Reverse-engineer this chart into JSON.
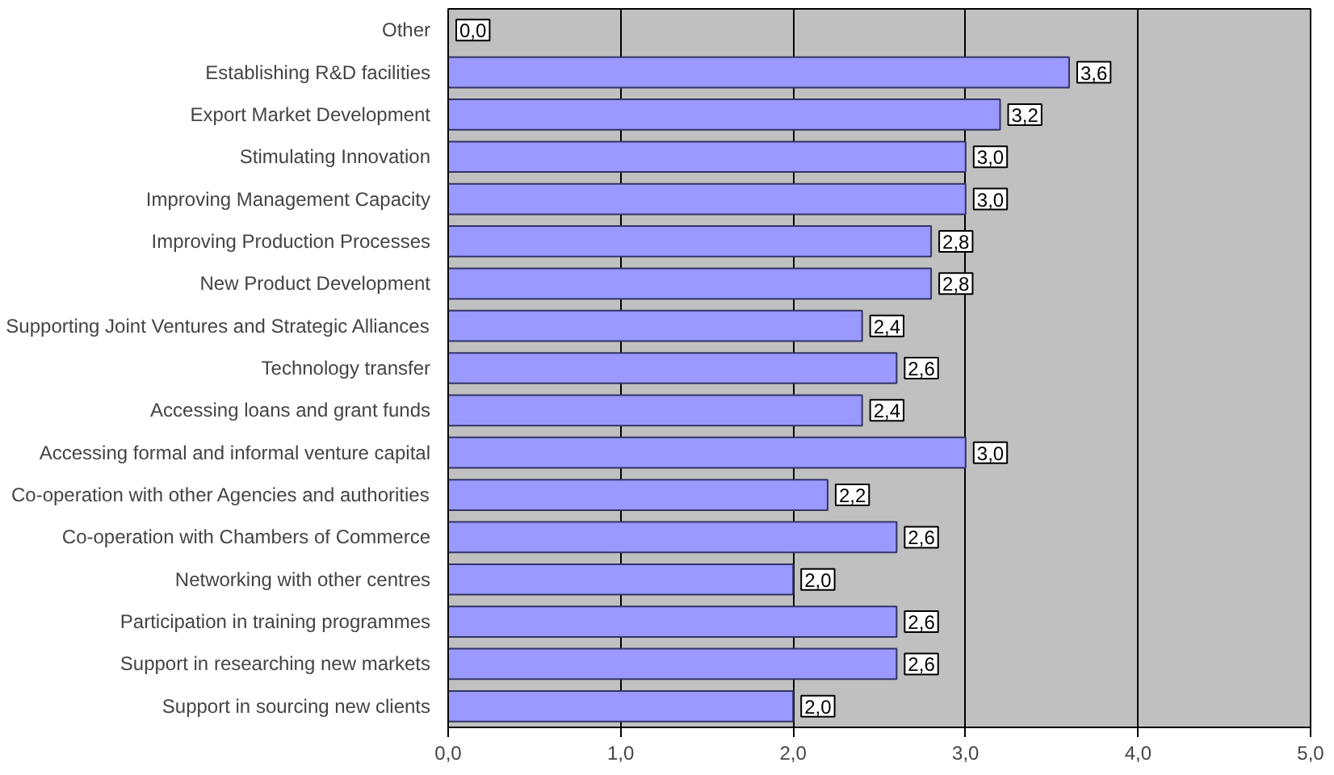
{
  "chart_data": {
    "type": "bar",
    "orientation": "horizontal",
    "categories": [
      "Other",
      "Establishing R&D facilities",
      "Export Market Development",
      "Stimulating Innovation",
      "Improving Management Capacity",
      "Improving Production Processes",
      "New Product Development",
      "Supporting Joint Ventures and Strategic Alliances",
      "Technology transfer",
      "Accessing loans and grant funds",
      "Accessing formal and informal venture capital",
      "Co-operation with other Agencies and authorities",
      "Co-operation with Chambers of Commerce",
      "Networking with other centres",
      "Participation in training programmes",
      "Support in researching new markets",
      "Support in sourcing new clients"
    ],
    "values": [
      0.0,
      3.6,
      3.2,
      3.0,
      3.0,
      2.8,
      2.8,
      2.4,
      2.6,
      2.4,
      3.0,
      2.2,
      2.6,
      2.0,
      2.6,
      2.6,
      2.0
    ],
    "value_labels": [
      "0,0",
      "3,6",
      "3,2",
      "3,0",
      "3,0",
      "2,8",
      "2,8",
      "2,4",
      "2,6",
      "2,4",
      "3,0",
      "2,2",
      "2,6",
      "2,0",
      "2,6",
      "2,6",
      "2,0"
    ],
    "color": "#9999ff",
    "xlim": [
      0,
      5
    ],
    "xticks": [
      {
        "value": 0,
        "label": "0,0"
      },
      {
        "value": 1,
        "label": "1,0"
      },
      {
        "value": 2,
        "label": "2,0"
      },
      {
        "value": 3,
        "label": "3,0"
      },
      {
        "value": 4,
        "label": "4,0"
      },
      {
        "value": 5,
        "label": "5,0"
      }
    ],
    "grid": "x"
  }
}
